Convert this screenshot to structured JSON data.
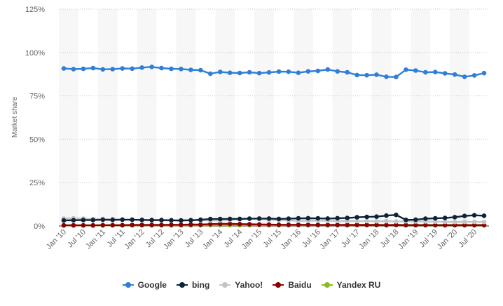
{
  "chart_data": {
    "type": "line",
    "ylabel": "Market share",
    "ylim": [
      0,
      125
    ],
    "yticks": [
      "0%",
      "25%",
      "50%",
      "75%",
      "100%",
      "125%"
    ],
    "yticks_values": [
      0,
      25,
      50,
      75,
      100,
      125
    ],
    "grid": true,
    "legend_position": "bottom",
    "x": [
      "Jan '10",
      "Apr '10",
      "Jul '10",
      "Oct '10",
      "Jan '11",
      "Apr '11",
      "Jul '11",
      "Oct '11",
      "Jan '12",
      "Apr '12",
      "Jul '12",
      "Oct '12",
      "Jan '13",
      "Apr '13",
      "Jul '13",
      "Oct '13",
      "Jan '14",
      "Apr '14",
      "Jul '14",
      "Oct '14",
      "Jan '15",
      "Apr '15",
      "Jul '15",
      "Oct '15",
      "Jan '16",
      "Apr '16",
      "Jul '16",
      "Oct '16",
      "Jan '17",
      "Apr '17",
      "Jul '17",
      "Oct '17",
      "Jan '18",
      "Apr '18",
      "Jul '18",
      "Oct '18",
      "Jan '19",
      "Apr '19",
      "Jul '19",
      "Oct '19",
      "Jan '20",
      "Apr '20",
      "Jul '20",
      "Oct '20"
    ],
    "xtick_labels": [
      "Jan '10",
      "Jul '10",
      "Jan '11",
      "Jul '11",
      "Jan '12",
      "Jul '12",
      "Jan '13",
      "Jul '13",
      "Jan '14",
      "Jul '14",
      "Jan '15",
      "Jul '15",
      "Jan '16",
      "Jul '16",
      "Jan '17",
      "Jul '17",
      "Jan '18",
      "Jul '18",
      "Jan '19",
      "Jul '19",
      "Jan '20",
      "Jul '20"
    ],
    "series": [
      {
        "name": "Google",
        "color": "#2f7ed8",
        "values": [
          90.8,
          90.4,
          90.6,
          91.0,
          90.3,
          90.4,
          90.8,
          90.7,
          91.3,
          91.7,
          91.0,
          90.6,
          90.5,
          90.0,
          89.8,
          87.8,
          88.8,
          88.3,
          88.2,
          88.6,
          88.1,
          88.5,
          89.0,
          88.9,
          88.3,
          89.1,
          89.4,
          90.2,
          89.1,
          88.6,
          87.0,
          86.9,
          87.2,
          86.0,
          85.9,
          90.1,
          89.6,
          88.6,
          88.7,
          88.0,
          87.3,
          86.0,
          86.8,
          88.1
        ]
      },
      {
        "name": "bing",
        "color": "#0d233a",
        "values": [
          3.2,
          3.3,
          3.4,
          3.4,
          3.6,
          3.5,
          3.6,
          3.6,
          3.5,
          3.4,
          3.4,
          3.3,
          3.2,
          3.3,
          3.6,
          4.0,
          4.0,
          4.1,
          4.1,
          4.2,
          4.3,
          4.3,
          4.1,
          4.2,
          4.4,
          4.5,
          4.4,
          4.3,
          4.5,
          4.6,
          5.0,
          5.2,
          5.4,
          6.0,
          6.4,
          3.5,
          3.6,
          4.2,
          4.4,
          4.6,
          5.1,
          5.8,
          6.2,
          5.9
        ]
      },
      {
        "name": "Yahoo!",
        "color": "#c4c4c4",
        "values": [
          4.3,
          4.4,
          4.2,
          4.0,
          4.1,
          4.0,
          3.8,
          3.7,
          3.4,
          3.3,
          3.2,
          3.1,
          3.2,
          3.4,
          3.2,
          3.1,
          3.2,
          3.5,
          3.8,
          4.2,
          4.1,
          3.6,
          3.3,
          3.2,
          3.0,
          3.0,
          3.1,
          2.9,
          2.9,
          2.8,
          2.8,
          2.8,
          2.7,
          2.8,
          2.6,
          2.7,
          2.6,
          2.6,
          2.5,
          2.4,
          2.3,
          2.4,
          2.4,
          2.3
        ]
      },
      {
        "name": "Baidu",
        "color": "#8b0000",
        "values": [
          0.4,
          0.4,
          0.4,
          0.4,
          0.5,
          0.5,
          0.5,
          0.6,
          0.6,
          0.6,
          0.6,
          0.7,
          0.7,
          0.8,
          0.8,
          1.1,
          1.2,
          1.2,
          1.1,
          1.0,
          0.9,
          0.8,
          0.7,
          0.7,
          0.7,
          0.7,
          0.6,
          0.6,
          0.6,
          0.6,
          0.6,
          0.6,
          0.6,
          0.5,
          0.6,
          0.5,
          0.5,
          0.5,
          0.5,
          0.5,
          0.5,
          0.5,
          0.5,
          0.5
        ]
      },
      {
        "name": "Yandex RU",
        "color": "#8bbc21",
        "values": [
          0.3,
          0.3,
          0.3,
          0.3,
          0.3,
          0.4,
          0.4,
          0.4,
          0.4,
          0.4,
          0.4,
          0.4,
          0.4,
          0.4,
          0.4,
          0.5,
          0.5,
          0.5,
          0.5,
          0.5,
          0.5,
          0.5,
          0.5,
          0.5,
          0.5,
          0.5,
          0.5,
          0.5,
          0.5,
          0.5,
          0.6,
          0.6,
          0.6,
          0.6,
          0.7,
          0.6,
          0.6,
          0.6,
          0.6,
          0.6,
          0.6,
          0.6,
          0.6,
          0.6
        ]
      }
    ]
  }
}
